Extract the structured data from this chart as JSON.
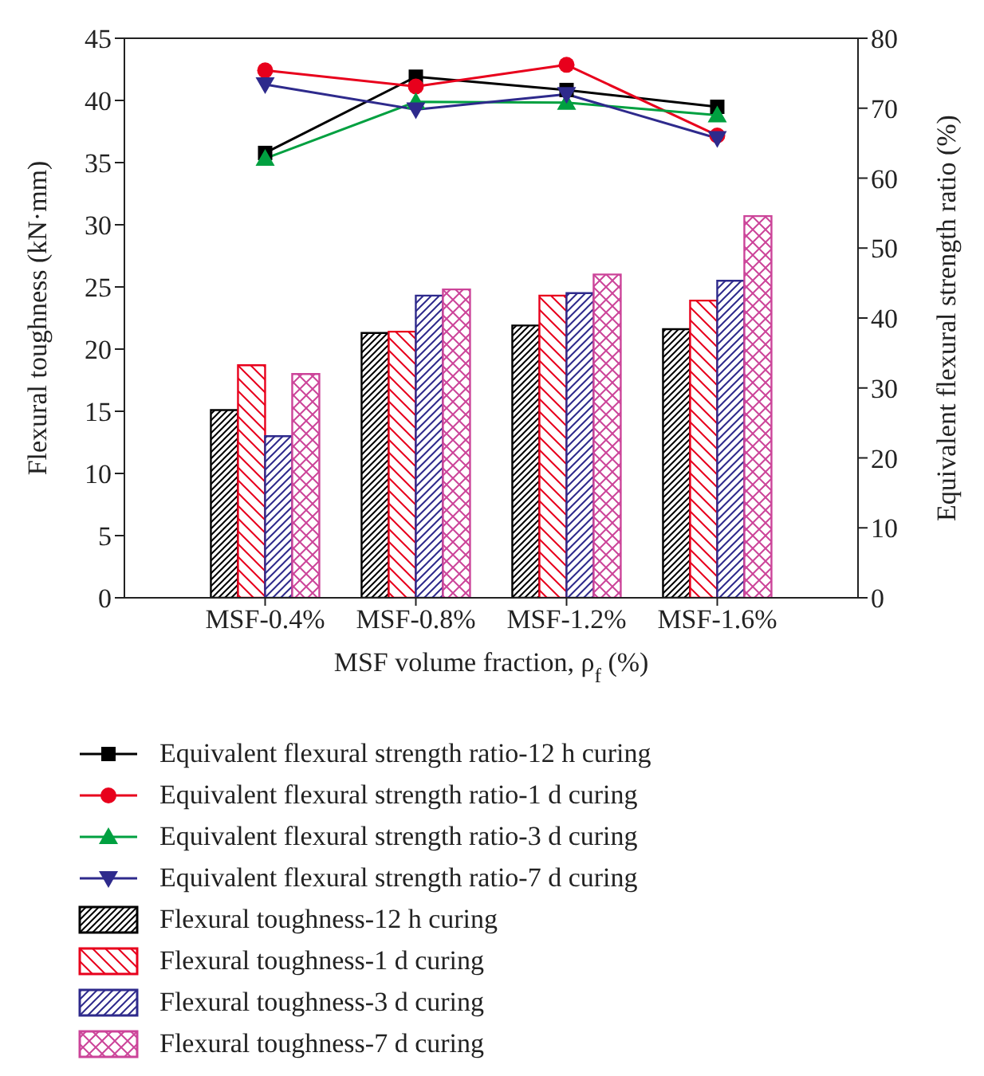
{
  "chart_data": {
    "type": "bar",
    "xlabel": "MSF volume fraction, ρ$_{f}$ (%)",
    "ylabel": "Flexural toughness (kN·mm)",
    "y2label": "Equivalent flexural strength ratio (%)",
    "categories": [
      "MSF-0.4%",
      "MSF-0.8%",
      "MSF-1.2%",
      "MSF-1.6%"
    ],
    "ylim": [
      0,
      45
    ],
    "yticks": [
      0,
      5,
      10,
      15,
      20,
      25,
      30,
      35,
      40,
      45
    ],
    "y2lim": [
      0,
      80
    ],
    "y2ticks": [
      0,
      10,
      20,
      30,
      40,
      50,
      60,
      70,
      80
    ],
    "grid": false,
    "legend": "bottom",
    "series": [
      {
        "name": "Equivalent flexural strength ratio-12 h curing",
        "type": "line",
        "axis": "y2",
        "marker": "square",
        "color": "#000000",
        "values": [
          63.6,
          74.5,
          72.6,
          70.2
        ]
      },
      {
        "name": "Equivalent flexural strength ratio-1 d curing",
        "type": "line",
        "axis": "y2",
        "marker": "circle",
        "color": "#e8001c",
        "values": [
          75.4,
          73.1,
          76.2,
          66.1
        ]
      },
      {
        "name": "Equivalent flexural strength ratio-3 d curing",
        "type": "line",
        "axis": "y2",
        "marker": "triangle",
        "color": "#00a040",
        "values": [
          62.8,
          70.9,
          70.8,
          69.0
        ]
      },
      {
        "name": "Equivalent flexural strength ratio-7 d curing",
        "type": "line",
        "axis": "y2",
        "marker": "triangle-down",
        "color": "#2e2a8c",
        "values": [
          73.4,
          69.8,
          72.0,
          65.7
        ]
      },
      {
        "name": "Flexural toughness-12 h curing",
        "color": "#000000",
        "values": [
          15.1,
          21.3,
          21.9,
          21.6
        ]
      },
      {
        "name": "Flexural toughness-1 d curing",
        "color": "#e8001c",
        "values": [
          18.7,
          21.4,
          24.3,
          23.9
        ]
      },
      {
        "name": "Flexural toughness-3 d curing",
        "color": "#2e2a8c",
        "values": [
          13.0,
          24.3,
          24.5,
          25.5
        ]
      },
      {
        "name": "Flexural toughness-7 d curing",
        "color": "#cc4499",
        "values": [
          18.0,
          24.8,
          26.0,
          30.7
        ]
      }
    ]
  }
}
